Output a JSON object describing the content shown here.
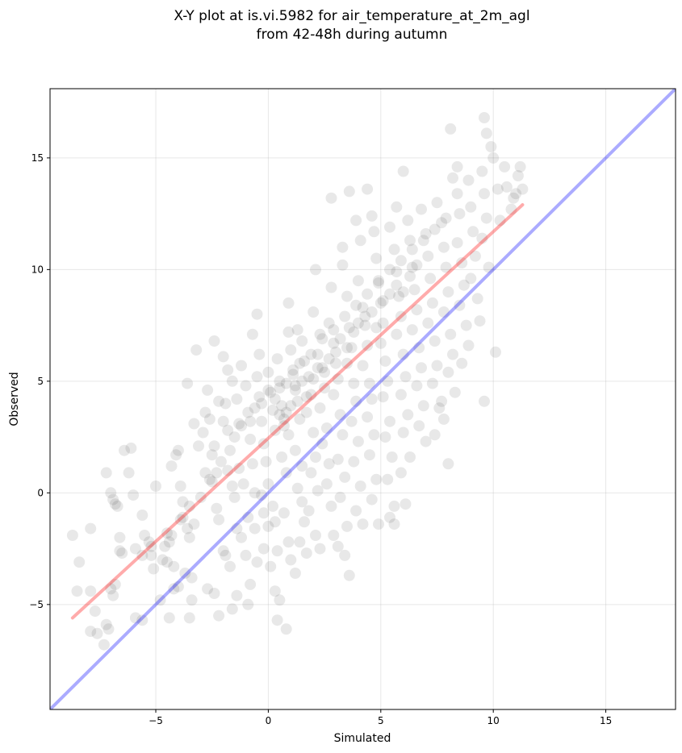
{
  "chart_data": {
    "type": "scatter",
    "title_line1": "X-Y plot at is.vi.5982 for air_temperature_at_2m_agl",
    "title_line2": "from 42-48h during autumn",
    "xlabel": "Simulated",
    "ylabel": "Observed",
    "xlim": [
      -9.7,
      18.1
    ],
    "ylim": [
      -9.7,
      18.1
    ],
    "xticks": [
      -5,
      0,
      5,
      10,
      15
    ],
    "yticks": [
      -5,
      0,
      5,
      10,
      15
    ],
    "xtick_labels": [
      "−5",
      "0",
      "5",
      "10",
      "15"
    ],
    "ytick_labels": [
      "−5",
      "0",
      "5",
      "10",
      "15"
    ],
    "grid": true,
    "point_color": "#000000",
    "point_alpha": 0.09,
    "identity_line": {
      "x": [
        -9.7,
        18.1
      ],
      "y": [
        -9.7,
        18.1
      ],
      "color": "#0000ff"
    },
    "fit_line": {
      "x": [
        -8.7,
        11.3
      ],
      "y": [
        -5.6,
        12.9
      ],
      "color": "#ff0000"
    },
    "points": [
      [
        -8.7,
        -1.9
      ],
      [
        -8.4,
        -3.1
      ],
      [
        -8.5,
        -4.4
      ],
      [
        -7.9,
        -1.6
      ],
      [
        -7.9,
        -4.4
      ],
      [
        -7.7,
        -5.3
      ],
      [
        -7.9,
        -6.2
      ],
      [
        -7.6,
        -6.3
      ],
      [
        -7.3,
        -6.8
      ],
      [
        -7.2,
        -5.9
      ],
      [
        -7.1,
        -6.1
      ],
      [
        -7.2,
        0.9
      ],
      [
        -7.0,
        0.0
      ],
      [
        -6.9,
        -0.3
      ],
      [
        -6.8,
        -0.5
      ],
      [
        -6.7,
        -0.6
      ],
      [
        -6.6,
        -2.0
      ],
      [
        -6.8,
        -4.1
      ],
      [
        -6.9,
        -4.6
      ],
      [
        -7.0,
        -4.3
      ],
      [
        -6.6,
        -2.6
      ],
      [
        -6.5,
        -2.7
      ],
      [
        -6.4,
        1.9
      ],
      [
        -6.1,
        2.0
      ],
      [
        -6.2,
        0.9
      ],
      [
        -6.0,
        -0.1
      ],
      [
        -5.9,
        -2.5
      ],
      [
        -5.6,
        -2.8
      ],
      [
        -5.5,
        -1.9
      ],
      [
        -5.3,
        -2.2
      ],
      [
        -5.9,
        -5.6
      ],
      [
        -5.6,
        -5.7
      ],
      [
        -5.6,
        -1.0
      ],
      [
        -5.2,
        -2.8
      ],
      [
        -5.1,
        -3.4
      ],
      [
        -5.0,
        0.3
      ],
      [
        -4.8,
        -4.8
      ],
      [
        -4.6,
        -2.4
      ],
      [
        -4.4,
        -2.2
      ],
      [
        -4.3,
        -1.9
      ],
      [
        -4.7,
        -3.0
      ],
      [
        -4.5,
        -3.1
      ],
      [
        -4.2,
        -3.3
      ],
      [
        -4.4,
        -5.6
      ],
      [
        -4.2,
        -4.3
      ],
      [
        -4.0,
        -4.2
      ],
      [
        -4.3,
        1.2
      ],
      [
        -4.1,
        1.7
      ],
      [
        -4.0,
        1.9
      ],
      [
        -3.9,
        0.3
      ],
      [
        -3.8,
        -0.4
      ],
      [
        -3.8,
        -1.1
      ],
      [
        -3.6,
        -1.6
      ],
      [
        -3.5,
        -2.0
      ],
      [
        -3.5,
        -0.6
      ],
      [
        -3.3,
        -1.4
      ],
      [
        -3.7,
        -3.6
      ],
      [
        -3.4,
        -3.8
      ],
      [
        -3.6,
        4.9
      ],
      [
        -3.3,
        3.1
      ],
      [
        -3.1,
        2.1
      ],
      [
        -2.9,
        2.7
      ],
      [
        -3.2,
        6.4
      ],
      [
        -3.4,
        -4.8
      ],
      [
        -3.5,
        -5.6
      ],
      [
        -2.7,
        4.6
      ],
      [
        -2.8,
        3.6
      ],
      [
        -2.6,
        3.3
      ],
      [
        -2.5,
        1.7
      ],
      [
        -2.4,
        2.1
      ],
      [
        -2.3,
        0.9
      ],
      [
        -2.6,
        0.6
      ],
      [
        -2.4,
        6.8
      ],
      [
        -2.2,
        4.1
      ],
      [
        -2.0,
        3.2
      ],
      [
        -2.3,
        -0.7
      ],
      [
        -2.2,
        -1.2
      ],
      [
        -2.0,
        -2.6
      ],
      [
        -1.9,
        -2.8
      ],
      [
        -2.7,
        -4.3
      ],
      [
        -2.4,
        -4.5
      ],
      [
        -2.2,
        -5.5
      ],
      [
        -2.0,
        6.1
      ],
      [
        -1.9,
        4.0
      ],
      [
        -1.8,
        2.8
      ],
      [
        -1.7,
        1.9
      ],
      [
        -1.6,
        0.3
      ],
      [
        -1.5,
        -0.2
      ],
      [
        -1.8,
        5.5
      ],
      [
        -1.6,
        5.0
      ],
      [
        -1.4,
        4.2
      ],
      [
        -1.3,
        3.1
      ],
      [
        -1.4,
        -1.6
      ],
      [
        -1.2,
        -2.0
      ],
      [
        -1.0,
        -2.8
      ],
      [
        -1.7,
        -3.3
      ],
      [
        -1.4,
        -4.6
      ],
      [
        -1.6,
        -5.2
      ],
      [
        -1.3,
        1.1
      ],
      [
        -1.1,
        0.4
      ],
      [
        -1.2,
        5.7
      ],
      [
        -1.0,
        4.8
      ],
      [
        -0.9,
        3.6
      ],
      [
        -0.8,
        2.4
      ],
      [
        -0.7,
        1.3
      ],
      [
        -0.6,
        0.0
      ],
      [
        -0.9,
        -1.1
      ],
      [
        -0.6,
        -1.6
      ],
      [
        -0.5,
        -3.1
      ],
      [
        -0.8,
        -4.1
      ],
      [
        -0.9,
        -5.0
      ],
      [
        -0.7,
        7.1
      ],
      [
        -0.5,
        5.2
      ],
      [
        -0.4,
        4.3
      ],
      [
        -0.3,
        3.2
      ],
      [
        -0.2,
        2.2
      ],
      [
        -0.1,
        1.4
      ],
      [
        -0.4,
        6.2
      ],
      [
        -0.3,
        -0.1
      ],
      [
        -0.2,
        -0.9
      ],
      [
        0.0,
        -1.5
      ],
      [
        -0.2,
        -2.5
      ],
      [
        0.1,
        -3.3
      ],
      [
        -0.5,
        8.0
      ],
      [
        0.0,
        5.4
      ],
      [
        0.1,
        4.5
      ],
      [
        0.2,
        3.7
      ],
      [
        0.3,
        2.8
      ],
      [
        0.0,
        0.4
      ],
      [
        0.2,
        -0.6
      ],
      [
        0.3,
        -1.3
      ],
      [
        0.4,
        -2.6
      ],
      [
        0.3,
        -4.4
      ],
      [
        0.5,
        -4.8
      ],
      [
        0.4,
        -5.7
      ],
      [
        0.8,
        -6.1
      ],
      [
        0.4,
        6.0
      ],
      [
        0.5,
        4.7
      ],
      [
        0.6,
        3.9
      ],
      [
        0.7,
        3.3
      ],
      [
        0.8,
        3.6
      ],
      [
        0.9,
        2.6
      ],
      [
        0.6,
        1.6
      ],
      [
        0.8,
        0.9
      ],
      [
        0.7,
        -0.9
      ],
      [
        0.9,
        -2.2
      ],
      [
        1.0,
        -3.0
      ],
      [
        1.2,
        -3.6
      ],
      [
        0.9,
        7.2
      ],
      [
        0.9,
        8.5
      ],
      [
        1.0,
        6.4
      ],
      [
        1.1,
        5.5
      ],
      [
        1.2,
        4.8
      ],
      [
        1.3,
        4.1
      ],
      [
        1.4,
        3.3
      ],
      [
        1.2,
        1.9
      ],
      [
        1.5,
        1.2
      ],
      [
        1.3,
        0.2
      ],
      [
        1.5,
        -0.4
      ],
      [
        1.6,
        -1.3
      ],
      [
        1.4,
        -2.2
      ],
      [
        1.7,
        -2.7
      ],
      [
        1.3,
        7.3
      ],
      [
        1.5,
        6.8
      ],
      [
        1.6,
        5.9
      ],
      [
        1.8,
        5.2
      ],
      [
        1.9,
        4.4
      ],
      [
        1.7,
        3.6
      ],
      [
        2.0,
        2.7
      ],
      [
        2.1,
        1.6
      ],
      [
        1.9,
        0.9
      ],
      [
        2.2,
        0.1
      ],
      [
        1.8,
        -0.8
      ],
      [
        2.1,
        -1.9
      ],
      [
        2.3,
        -2.5
      ],
      [
        2.0,
        8.1
      ],
      [
        2.3,
        7.1
      ],
      [
        2.2,
        6.2
      ],
      [
        2.4,
        5.6
      ],
      [
        2.5,
        4.7
      ],
      [
        2.3,
        3.8
      ],
      [
        2.6,
        2.9
      ],
      [
        2.4,
        2.2
      ],
      [
        2.7,
        1.3
      ],
      [
        2.6,
        0.4
      ],
      [
        2.8,
        -0.6
      ],
      [
        2.9,
        -1.9
      ],
      [
        2.1,
        10.0
      ],
      [
        2.8,
        9.2
      ],
      [
        2.7,
        7.6
      ],
      [
        2.9,
        6.7
      ],
      [
        3.0,
        5.8
      ],
      [
        3.1,
        5.1
      ],
      [
        2.9,
        4.4
      ],
      [
        3.2,
        3.5
      ],
      [
        3.3,
        2.6
      ],
      [
        3.1,
        1.5
      ],
      [
        3.4,
        0.7
      ],
      [
        3.2,
        -0.2
      ],
      [
        3.5,
        -1.5
      ],
      [
        3.1,
        -2.4
      ],
      [
        3.4,
        -2.8
      ],
      [
        3.6,
        -3.7
      ],
      [
        2.8,
        13.2
      ],
      [
        3.3,
        11.0
      ],
      [
        3.3,
        10.2
      ],
      [
        3.5,
        8.8
      ],
      [
        3.6,
        7.4
      ],
      [
        3.7,
        6.5
      ],
      [
        3.5,
        5.8
      ],
      [
        3.8,
        4.9
      ],
      [
        3.9,
        4.1
      ],
      [
        3.7,
        3.2
      ],
      [
        4.0,
        2.3
      ],
      [
        3.8,
        1.4
      ],
      [
        4.1,
        0.3
      ],
      [
        3.9,
        -0.8
      ],
      [
        4.2,
        -1.4
      ],
      [
        3.6,
        13.5
      ],
      [
        3.9,
        12.2
      ],
      [
        4.1,
        11.3
      ],
      [
        4.0,
        9.5
      ],
      [
        4.2,
        8.3
      ],
      [
        4.3,
        7.5
      ],
      [
        4.4,
        6.6
      ],
      [
        4.2,
        5.7
      ],
      [
        4.5,
        4.9
      ],
      [
        4.6,
        4.2
      ],
      [
        4.4,
        3.4
      ],
      [
        4.7,
        2.6
      ],
      [
        4.5,
        1.7
      ],
      [
        4.8,
        0.6
      ],
      [
        4.6,
        -0.3
      ],
      [
        4.9,
        -1.4
      ],
      [
        4.4,
        13.6
      ],
      [
        4.6,
        12.4
      ],
      [
        4.7,
        11.7
      ],
      [
        4.8,
        10.5
      ],
      [
        4.9,
        9.4
      ],
      [
        5.0,
        8.5
      ],
      [
        5.1,
        7.6
      ],
      [
        5.0,
        6.7
      ],
      [
        5.2,
        5.9
      ],
      [
        5.3,
        5.0
      ],
      [
        5.1,
        4.3
      ],
      [
        5.4,
        3.2
      ],
      [
        5.2,
        2.5
      ],
      [
        5.5,
        1.6
      ],
      [
        5.3,
        0.6
      ],
      [
        5.6,
        -0.6
      ],
      [
        5.4,
        -1.1
      ],
      [
        5.6,
        -1.4
      ],
      [
        5.7,
        12.8
      ],
      [
        5.4,
        11.9
      ],
      [
        5.6,
        10.9
      ],
      [
        5.7,
        9.9
      ],
      [
        5.8,
        8.8
      ],
      [
        5.9,
        7.9
      ],
      [
        5.7,
        7.1
      ],
      [
        6.0,
        6.2
      ],
      [
        6.1,
        5.2
      ],
      [
        5.9,
        4.4
      ],
      [
        6.2,
        3.5
      ],
      [
        6.0,
        2.7
      ],
      [
        6.3,
        1.6
      ],
      [
        5.9,
        0.9
      ],
      [
        6.1,
        -0.5
      ],
      [
        6.0,
        14.4
      ],
      [
        6.2,
        12.2
      ],
      [
        6.3,
        11.3
      ],
      [
        6.4,
        10.1
      ],
      [
        6.5,
        9.1
      ],
      [
        6.6,
        8.2
      ],
      [
        6.4,
        7.3
      ],
      [
        6.7,
        6.5
      ],
      [
        6.8,
        5.6
      ],
      [
        6.6,
        4.8
      ],
      [
        6.9,
        3.9
      ],
      [
        6.7,
        3.0
      ],
      [
        7.0,
        2.3
      ],
      [
        6.8,
        12.7
      ],
      [
        7.0,
        11.6
      ],
      [
        7.1,
        10.6
      ],
      [
        7.2,
        9.6
      ],
      [
        7.3,
        8.5
      ],
      [
        7.1,
        7.6
      ],
      [
        7.4,
        6.8
      ],
      [
        7.5,
        5.7
      ],
      [
        7.3,
        4.9
      ],
      [
        7.6,
        3.8
      ],
      [
        7.4,
        2.6
      ],
      [
        7.7,
        4.1
      ],
      [
        8.0,
        1.3
      ],
      [
        7.5,
        13.0
      ],
      [
        7.7,
        12.1
      ],
      [
        7.8,
        11.0
      ],
      [
        7.9,
        10.1
      ],
      [
        8.0,
        9.0
      ],
      [
        7.8,
        8.1
      ],
      [
        8.1,
        7.1
      ],
      [
        8.2,
        6.2
      ],
      [
        8.0,
        5.4
      ],
      [
        8.3,
        4.5
      ],
      [
        7.8,
        3.3
      ],
      [
        8.1,
        16.3
      ],
      [
        8.2,
        14.1
      ],
      [
        8.4,
        13.4
      ],
      [
        8.5,
        12.5
      ],
      [
        8.4,
        11.2
      ],
      [
        8.6,
        10.3
      ],
      [
        8.7,
        9.3
      ],
      [
        8.5,
        8.4
      ],
      [
        8.8,
        7.5
      ],
      [
        8.9,
        6.6
      ],
      [
        8.6,
        5.8
      ],
      [
        8.4,
        14.6
      ],
      [
        8.9,
        14.0
      ],
      [
        9.0,
        12.8
      ],
      [
        9.1,
        11.7
      ],
      [
        9.2,
        10.6
      ],
      [
        9.0,
        9.6
      ],
      [
        9.3,
        8.7
      ],
      [
        9.4,
        7.7
      ],
      [
        9.5,
        14.4
      ],
      [
        9.6,
        13.4
      ],
      [
        9.7,
        12.3
      ],
      [
        9.5,
        11.4
      ],
      [
        9.8,
        10.1
      ],
      [
        9.6,
        16.8
      ],
      [
        9.7,
        16.1
      ],
      [
        9.9,
        15.5
      ],
      [
        10.0,
        15.0
      ],
      [
        10.2,
        13.6
      ],
      [
        10.3,
        12.2
      ],
      [
        10.1,
        6.3
      ],
      [
        9.6,
        4.1
      ],
      [
        10.6,
        13.7
      ],
      [
        10.8,
        12.7
      ],
      [
        10.9,
        13.2
      ],
      [
        11.1,
        14.2
      ],
      [
        11.2,
        14.6
      ],
      [
        11.0,
        13.4
      ],
      [
        11.3,
        13.6
      ],
      [
        10.5,
        14.6
      ],
      [
        0.5,
        3.5
      ],
      [
        0.7,
        3.0
      ],
      [
        1.0,
        3.9
      ],
      [
        1.2,
        4.6
      ],
      [
        1.5,
        5.0
      ],
      [
        1.7,
        4.3
      ],
      [
        2.0,
        5.1
      ],
      [
        2.2,
        5.6
      ],
      [
        2.5,
        5.4
      ],
      [
        2.7,
        6.0
      ],
      [
        3.0,
        6.3
      ],
      [
        3.2,
        6.9
      ],
      [
        3.5,
        6.5
      ],
      [
        3.8,
        7.2
      ],
      [
        4.0,
        7.6
      ],
      [
        4.3,
        7.9
      ],
      [
        4.6,
        8.1
      ],
      [
        4.8,
        7.4
      ],
      [
        5.1,
        8.6
      ],
      [
        5.4,
        8.9
      ],
      [
        5.7,
        9.3
      ],
      [
        6.0,
        9.0
      ],
      [
        6.3,
        9.7
      ],
      [
        6.6,
        10.2
      ],
      [
        -0.8,
        3.2
      ],
      [
        -0.6,
        3.8
      ],
      [
        -0.3,
        4.0
      ],
      [
        0.0,
        4.6
      ],
      [
        0.3,
        4.2
      ],
      [
        0.5,
        5.0
      ],
      [
        0.8,
        4.9
      ],
      [
        1.1,
        5.3
      ],
      [
        1.4,
        5.8
      ],
      [
        1.9,
        6.2
      ],
      [
        2.4,
        6.9
      ],
      [
        2.9,
        7.3
      ],
      [
        3.4,
        7.9
      ],
      [
        3.9,
        8.4
      ],
      [
        4.4,
        8.9
      ],
      [
        4.9,
        9.5
      ],
      [
        5.4,
        10.0
      ],
      [
        5.9,
        10.4
      ],
      [
        6.4,
        10.9
      ],
      [
        6.9,
        11.3
      ],
      [
        7.4,
        11.8
      ],
      [
        7.9,
        12.3
      ],
      [
        -1.5,
        2.5
      ],
      [
        -1.2,
        3.0
      ],
      [
        -2.5,
        0.5
      ],
      [
        -2.1,
        1.4
      ],
      [
        -1.8,
        1.0
      ],
      [
        -3.0,
        -0.2
      ],
      [
        -2.8,
        0.9
      ],
      [
        -3.9,
        -1.2
      ],
      [
        -4.5,
        -1.8
      ],
      [
        -5.2,
        -2.4
      ]
    ]
  }
}
